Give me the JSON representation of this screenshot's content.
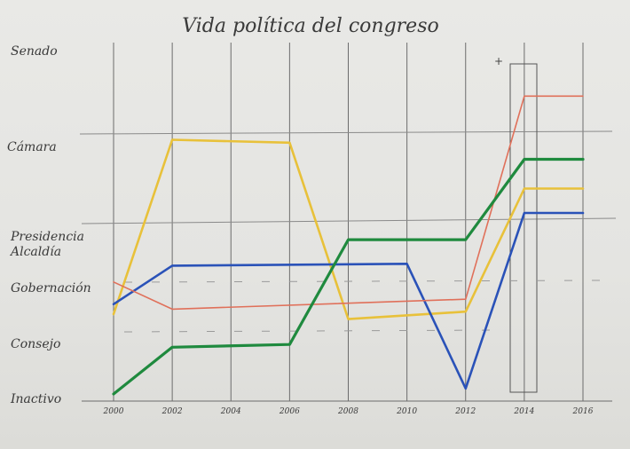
{
  "chart_data": {
    "type": "line",
    "title": "Vida política del congreso",
    "xlabel": "",
    "ylabel": "",
    "x": [
      2000,
      2002,
      2004,
      2006,
      2008,
      2010,
      2012,
      2014,
      2016
    ],
    "x_tick_labels": [
      "2000",
      "2002",
      "2004",
      "2006",
      "2008",
      "2010",
      "2012",
      "2014",
      "2016"
    ],
    "xlim": [
      2000,
      2016
    ],
    "y_tick_labels": [
      "Senado",
      "Cámara",
      "Presidencia",
      "Alcaldía",
      "Gobernación",
      "Consejo",
      "Inactivo"
    ],
    "ylim": [
      0,
      6
    ],
    "grid": true,
    "series": [
      {
        "color": "#e8c13a",
        "points": [
          [
            2000,
            1.5
          ],
          [
            2002,
            4.95
          ],
          [
            2006,
            4.92
          ],
          [
            2008,
            1.4
          ],
          [
            2012,
            1.55
          ],
          [
            2014,
            4.45
          ],
          [
            2016,
            4.45
          ]
        ]
      },
      {
        "color": "#2a52b8",
        "points": [
          [
            2000,
            1.7
          ],
          [
            2002,
            2.65
          ],
          [
            2010,
            2.7
          ],
          [
            2012,
            0.1
          ],
          [
            2014,
            4.2
          ],
          [
            2016,
            4.2
          ]
        ]
      },
      {
        "color": "#e0705a",
        "points": [
          [
            2000,
            2.2
          ],
          [
            2002,
            1.6
          ],
          [
            2012,
            1.8
          ],
          [
            2014,
            5.45
          ],
          [
            2016,
            5.45
          ]
        ]
      },
      {
        "color": "#1f8a3e",
        "points": [
          [
            2000,
            0.0
          ],
          [
            2002,
            0.85
          ],
          [
            2006,
            0.9
          ],
          [
            2008,
            3.65
          ],
          [
            2012,
            3.65
          ],
          [
            2014,
            4.75
          ],
          [
            2016,
            4.75
          ]
        ]
      }
    ]
  }
}
